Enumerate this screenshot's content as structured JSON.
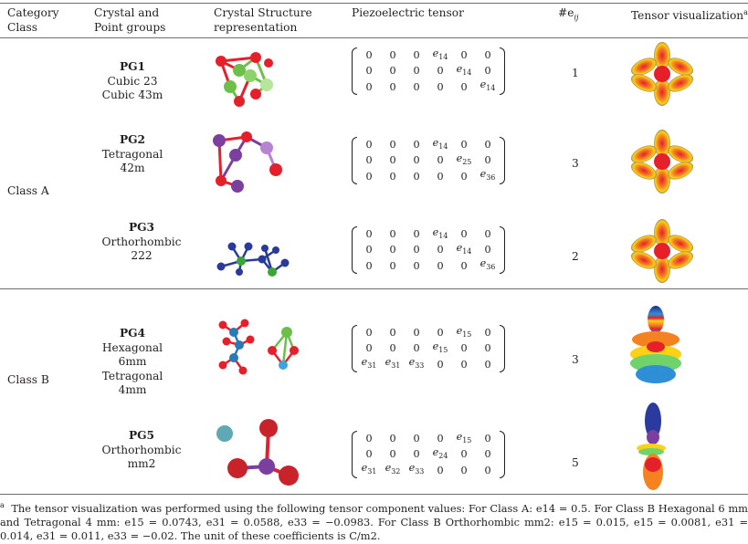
{
  "headers": {
    "category": [
      "Category",
      "Class"
    ],
    "crystal": [
      "Crystal and",
      "Point groups"
    ],
    "structure": [
      "Crystal Structure",
      "representation"
    ],
    "tensor": "Piezoelectric tensor",
    "count_prefix": "#e",
    "count_sub": "ij",
    "visual": "Tensor visualization",
    "visual_sup": "a"
  },
  "classes": {
    "a": "Class A",
    "b": "Class B"
  },
  "rows": [
    {
      "pg": "PG1",
      "lines": [
        "Cubic 23",
        "Cubic 4̄3m"
      ],
      "count": "1",
      "matrix": [
        [
          "0",
          "0",
          "0",
          "e14",
          "0",
          "0"
        ],
        [
          "0",
          "0",
          "0",
          "0",
          "e14",
          "0"
        ],
        [
          "0",
          "0",
          "0",
          "0",
          "0",
          "e14"
        ]
      ]
    },
    {
      "pg": "PG2",
      "lines": [
        "Tetragonal 4̄2m"
      ],
      "count": "3",
      "matrix": [
        [
          "0",
          "0",
          "0",
          "e14",
          "0",
          "0"
        ],
        [
          "0",
          "0",
          "0",
          "0",
          "e25",
          "0"
        ],
        [
          "0",
          "0",
          "0",
          "0",
          "0",
          "e36"
        ]
      ]
    },
    {
      "pg": "PG3",
      "lines": [
        "Orthorhombic 222"
      ],
      "count": "2",
      "matrix": [
        [
          "0",
          "0",
          "0",
          "e14",
          "0",
          "0"
        ],
        [
          "0",
          "0",
          "0",
          "0",
          "e14",
          "0"
        ],
        [
          "0",
          "0",
          "0",
          "0",
          "0",
          "e36"
        ]
      ]
    },
    {
      "pg": "PG4",
      "lines": [
        "Hexagonal 6mm",
        "Tetragonal 4mm"
      ],
      "count": "3",
      "matrix": [
        [
          "0",
          "0",
          "0",
          "0",
          "e15",
          "0"
        ],
        [
          "0",
          "0",
          "0",
          "e15",
          "0",
          "0"
        ],
        [
          "e31",
          "e31",
          "e33",
          "0",
          "0",
          "0"
        ]
      ]
    },
    {
      "pg": "PG5",
      "lines": [
        "Orthorhombic mm2"
      ],
      "count": "5",
      "matrix": [
        [
          "0",
          "0",
          "0",
          "0",
          "e15",
          "0"
        ],
        [
          "0",
          "0",
          "0",
          "e24",
          "0",
          "0"
        ],
        [
          "e31",
          "e32",
          "e33",
          "0",
          "0",
          "0"
        ]
      ]
    }
  ],
  "footnote": {
    "mark": "a",
    "text": "The tensor visualization was performed using the following tensor component values: For Class A: e14 = 0.5. For Class B Hexagonal 6 mm and Tetragonal 4 mm: e15 = 0.0743, e31 = 0.0588, e33 = −0.0983. For Class B Orthorhombic mm2: e15 = 0.015, e15 = 0.0081, e31 = 0.014, e31 = 0.011, e33 = −0.02. The unit of these coefficients is C/m2."
  },
  "colors": {
    "rule": "#6d6e71",
    "red": "#e5202b",
    "green": "#6cc04a",
    "purple": "#7b3fa0",
    "blue": "#2a3a9a"
  }
}
